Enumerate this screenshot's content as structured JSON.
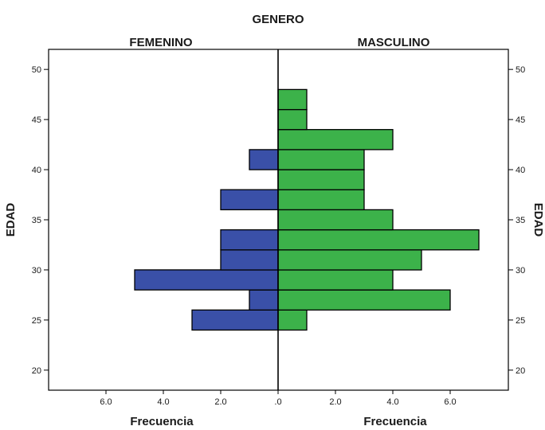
{
  "chart_data": {
    "type": "bar",
    "orientation": "horizontal",
    "title": "GENERO",
    "left_panel_label": "FEMENINO",
    "right_panel_label": "MASCULINO",
    "ylabel": "EDAD",
    "xlabel": "Frecuencia",
    "ylim": [
      18,
      52
    ],
    "y_ticks": [
      20,
      25,
      30,
      35,
      40,
      45,
      50
    ],
    "x_ticks_left": [
      "6.0",
      "4.0",
      "2.0"
    ],
    "x_ticks_right": [
      "2.0",
      "4.0",
      "6.0"
    ],
    "x_zero_label": ".0",
    "xlim": [
      0,
      8
    ],
    "bin_width": 2,
    "series": [
      {
        "name": "FEMENINO",
        "color": "#3a50a8",
        "bins": [
          {
            "start": 24,
            "value": 3
          },
          {
            "start": 26,
            "value": 1
          },
          {
            "start": 28,
            "value": 5
          },
          {
            "start": 30,
            "value": 2
          },
          {
            "start": 32,
            "value": 2
          },
          {
            "start": 36,
            "value": 2
          },
          {
            "start": 40,
            "value": 1
          }
        ]
      },
      {
        "name": "MASCULINO",
        "color": "#3cb24a",
        "bins": [
          {
            "start": 24,
            "value": 1
          },
          {
            "start": 26,
            "value": 6
          },
          {
            "start": 28,
            "value": 4
          },
          {
            "start": 30,
            "value": 5
          },
          {
            "start": 32,
            "value": 7
          },
          {
            "start": 34,
            "value": 4
          },
          {
            "start": 36,
            "value": 3
          },
          {
            "start": 38,
            "value": 3
          },
          {
            "start": 40,
            "value": 3
          },
          {
            "start": 42,
            "value": 4
          },
          {
            "start": 44,
            "value": 1
          },
          {
            "start": 46,
            "value": 1
          }
        ]
      }
    ],
    "grid": false
  }
}
